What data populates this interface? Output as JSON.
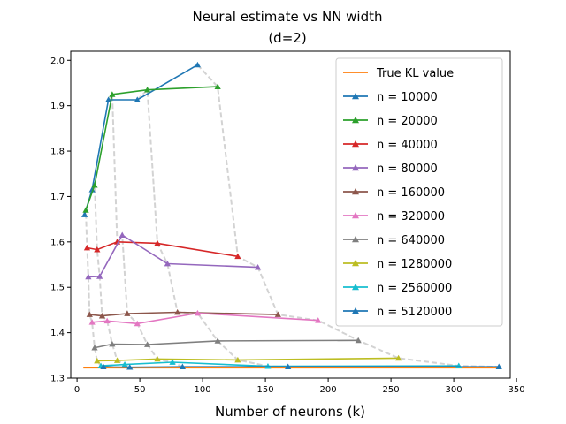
{
  "chart_data": {
    "type": "line",
    "title": [
      "Neural estimate vs NN width",
      "(d=2)"
    ],
    "xlabel": "Number of neurons (k)",
    "ylabel": "",
    "xlim": [
      -5,
      345
    ],
    "ylim": [
      1.3,
      2.02
    ],
    "xticks": [
      0,
      50,
      100,
      150,
      200,
      250,
      300,
      350
    ],
    "yticks": [
      1.3,
      1.4,
      1.5,
      1.6,
      1.7,
      1.8,
      1.9,
      2.0
    ],
    "xtick_labels": [
      "0",
      "50",
      "100",
      "150",
      "200",
      "250",
      "300",
      "350"
    ],
    "ytick_labels": [
      "1.3",
      "1.4",
      "1.5",
      "1.6",
      "1.7",
      "1.8",
      "1.9",
      "2.0"
    ],
    "grid": false,
    "legend_position": "upper right",
    "reference_line": {
      "name": "True KL value",
      "color": "#ff7f0e",
      "x": [
        5,
        336
      ],
      "y": [
        1.323,
        1.323
      ]
    },
    "connector_color": "#d3d3d3",
    "series": [
      {
        "name": "n = 10000",
        "color": "#1f77b4",
        "x": [
          6,
          12,
          25,
          48,
          96
        ],
        "y": [
          1.66,
          1.715,
          1.913,
          1.913,
          1.99
        ]
      },
      {
        "name": "n = 20000",
        "color": "#2ca02c",
        "x": [
          7,
          14,
          28,
          56,
          112
        ],
        "y": [
          1.67,
          1.725,
          1.925,
          1.935,
          1.942
        ]
      },
      {
        "name": "n = 40000",
        "color": "#d62728",
        "x": [
          8,
          16,
          32,
          64,
          128
        ],
        "y": [
          1.587,
          1.583,
          1.6,
          1.597,
          1.568
        ]
      },
      {
        "name": "n = 80000",
        "color": "#9467bd",
        "x": [
          9,
          18,
          36,
          72,
          144
        ],
        "y": [
          1.523,
          1.524,
          1.615,
          1.552,
          1.544
        ]
      },
      {
        "name": "n = 160000",
        "color": "#8c564b",
        "x": [
          10,
          20,
          40,
          80,
          160
        ],
        "y": [
          1.44,
          1.437,
          1.442,
          1.445,
          1.44
        ]
      },
      {
        "name": "n = 320000",
        "color": "#e377c2",
        "x": [
          12,
          24,
          48,
          96,
          192
        ],
        "y": [
          1.423,
          1.426,
          1.42,
          1.443,
          1.427
        ]
      },
      {
        "name": "n = 640000",
        "color": "#7f7f7f",
        "x": [
          14,
          28,
          56,
          112,
          224
        ],
        "y": [
          1.367,
          1.375,
          1.374,
          1.382,
          1.383
        ]
      },
      {
        "name": "n = 1280000",
        "color": "#bcbd22",
        "x": [
          16,
          32,
          64,
          128,
          256
        ],
        "y": [
          1.338,
          1.339,
          1.342,
          1.34,
          1.344
        ]
      },
      {
        "name": "n = 2560000",
        "color": "#17becf",
        "x": [
          19,
          38,
          76,
          152,
          304
        ],
        "y": [
          1.327,
          1.33,
          1.335,
          1.326,
          1.327
        ]
      },
      {
        "name": "n = 5120000",
        "color": "#1f77b4",
        "x": [
          21,
          42,
          84,
          168,
          336
        ],
        "y": [
          1.325,
          1.324,
          1.325,
          1.325,
          1.325
        ]
      }
    ]
  }
}
